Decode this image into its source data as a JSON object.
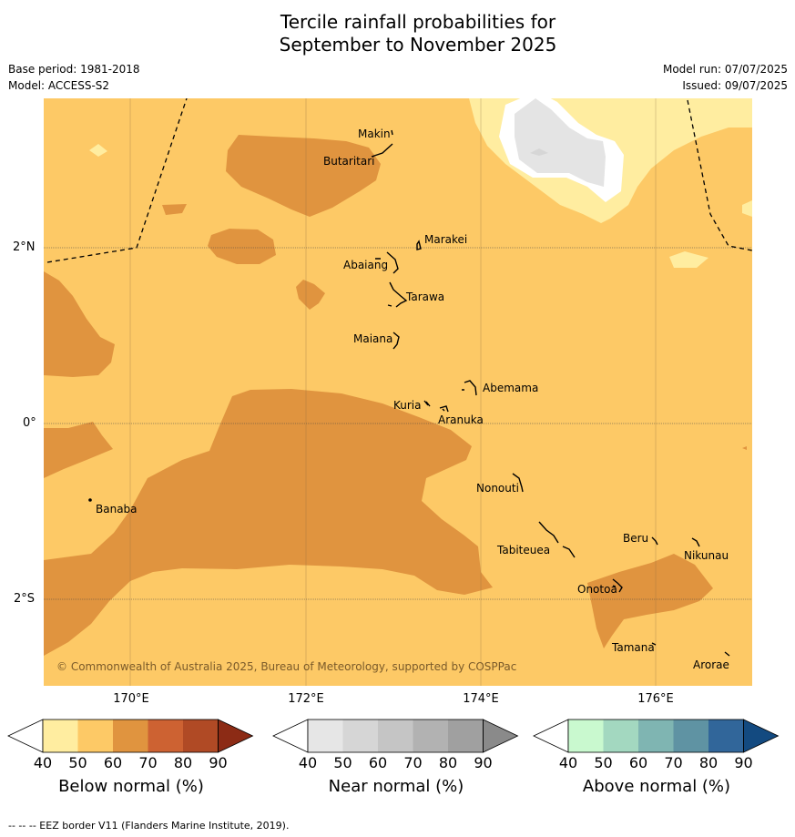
{
  "title_line1": "Tercile rainfall probabilities for",
  "title_line2": "September to November 2025",
  "base_period": "Base period: 1981-2018",
  "model": "Model: ACCESS-S2",
  "model_run": "Model run: 07/07/2025",
  "issued": "Issued: 09/07/2025",
  "lat_labels": [
    "2°N",
    "0°",
    "2°S"
  ],
  "lon_labels": [
    "170°E",
    "172°E",
    "174°E",
    "176°E"
  ],
  "places": {
    "makin": "Makin",
    "butaritari": "Butaritari",
    "marakei": "Marakei",
    "abaiang": "Abaiang",
    "tarawa": "Tarawa",
    "maiana": "Maiana",
    "abemama": "Abemama",
    "kuria": "Kuria",
    "aranuka": "Aranuka",
    "nonouti": "Nonouti",
    "banaba": "Banaba",
    "tabiteuea": "Tabiteuea",
    "beru": "Beru",
    "nikunau": "Nikunau",
    "onotoa": "Onotoa",
    "tamana": "Tamana",
    "arorae": "Arorae"
  },
  "copyright": "© Commonwealth of Australia 2025, Bureau of Meteorology, supported by COSPPac",
  "colorbars": {
    "ticks": [
      "40",
      "50",
      "60",
      "70",
      "80",
      "90"
    ],
    "below": {
      "label": "Below normal (%)",
      "colors": [
        "#ffffff",
        "#ffeda0",
        "#fdc966",
        "#e0943f",
        "#cd6232",
        "#b04a25",
        "#8c2b15"
      ]
    },
    "near": {
      "label": "Near normal (%)",
      "colors": [
        "#ffffff",
        "#e6e6e6",
        "#d6d6d6",
        "#c5c5c5",
        "#b2b2b2",
        "#a0a0a0",
        "#8a8a8a"
      ]
    },
    "above": {
      "label": "Above normal (%)",
      "colors": [
        "#ffffff",
        "#c9f9cf",
        "#a3d8c0",
        "#7fb5b2",
        "#5f93a3",
        "#31669a",
        "#134a80"
      ]
    }
  },
  "footer": "--  --  -- EEZ border V11 (Flanders Marine Institute, 2019)."
}
